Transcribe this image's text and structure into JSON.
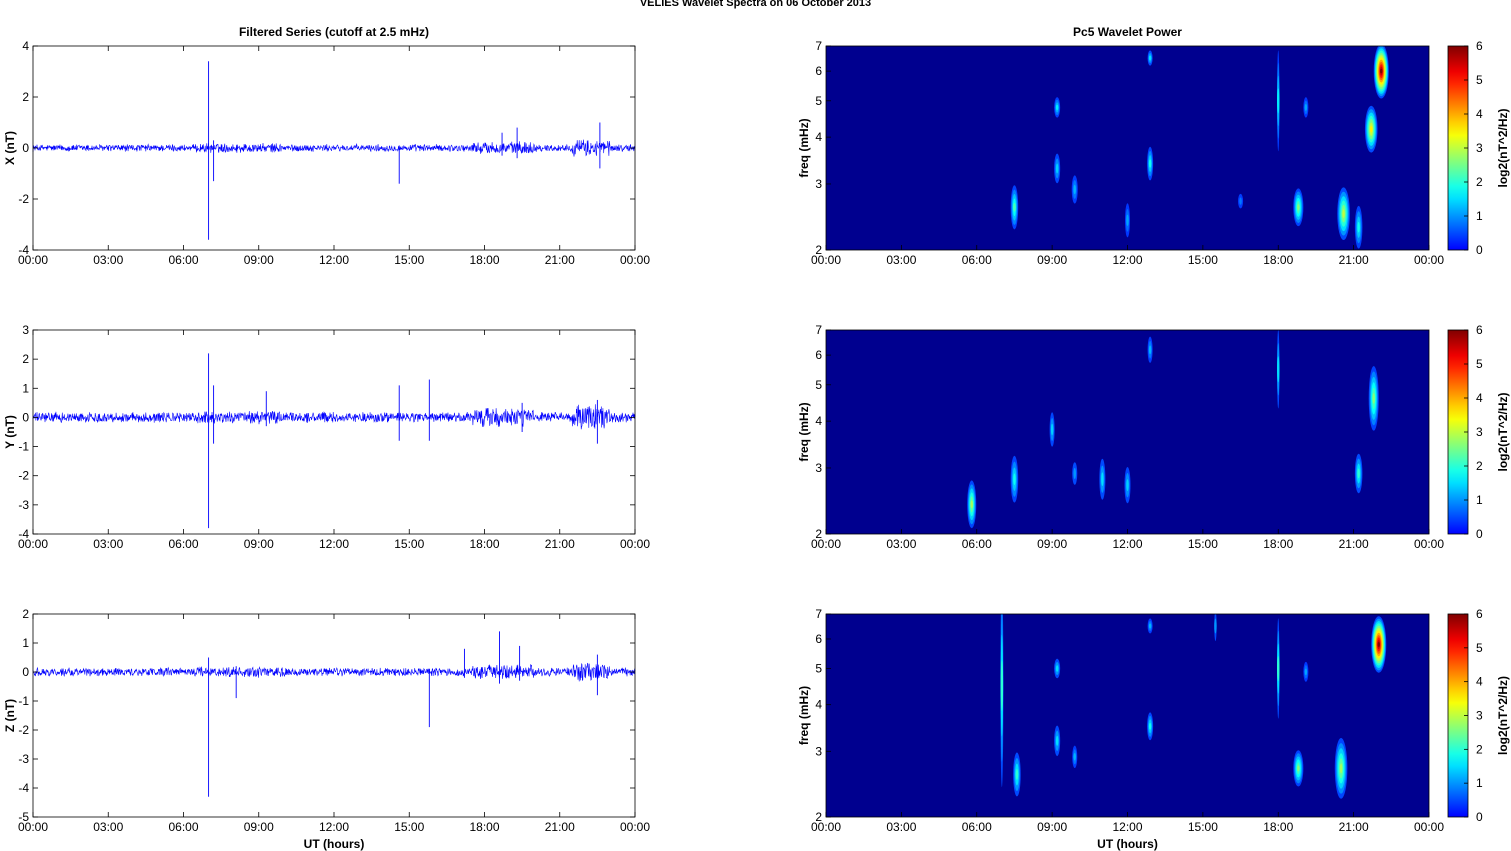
{
  "figure": {
    "title": "VELIES Wavelet Spectra on 06 October   2013",
    "left_title": "Filtered Series (cutoff at 2.5 mHz)",
    "right_title": "Pc5 Wavelet Power",
    "xlabel": "UT (hours)"
  },
  "colors": {
    "trace": "#0000ff",
    "background_power": "#00008f"
  },
  "chart_data": [
    {
      "type": "line",
      "name": "filtered-x",
      "ylabel": "X (nT)",
      "ylim": [
        -4,
        4
      ],
      "yticks": [
        "-4",
        "-2",
        "0",
        "2",
        "4"
      ],
      "xticks": [
        "00:00",
        "03:00",
        "06:00",
        "09:00",
        "12:00",
        "15:00",
        "18:00",
        "21:00",
        "00:00"
      ],
      "xlim_hours": [
        0,
        24
      ],
      "noise_amplitude": 0.12,
      "spikes": [
        {
          "t": 7.0,
          "max": 3.4,
          "min": -3.6
        },
        {
          "t": 7.2,
          "max": 0.3,
          "min": -1.3
        },
        {
          "t": 14.6,
          "max": 0.1,
          "min": -1.4
        },
        {
          "t": 18.7,
          "max": 0.6,
          "min": -0.3
        },
        {
          "t": 19.3,
          "max": 0.8,
          "min": -0.4
        },
        {
          "t": 22.6,
          "max": 1.0,
          "min": -0.8
        }
      ]
    },
    {
      "type": "line",
      "name": "filtered-y",
      "ylabel": "Y (nT)",
      "ylim": [
        -4,
        3
      ],
      "yticks": [
        "-4",
        "-3",
        "-2",
        "-1",
        "0",
        "1",
        "2",
        "3"
      ],
      "xticks": [
        "00:00",
        "03:00",
        "06:00",
        "09:00",
        "12:00",
        "15:00",
        "18:00",
        "21:00",
        "00:00"
      ],
      "xlim_hours": [
        0,
        24
      ],
      "noise_amplitude": 0.15,
      "spikes": [
        {
          "t": 7.0,
          "max": 2.2,
          "min": -3.8
        },
        {
          "t": 7.2,
          "max": 1.1,
          "min": -0.9
        },
        {
          "t": 9.3,
          "max": 0.9,
          "min": -0.3
        },
        {
          "t": 14.6,
          "max": 1.1,
          "min": -0.8
        },
        {
          "t": 15.8,
          "max": 1.3,
          "min": -0.8
        },
        {
          "t": 19.5,
          "max": 0.5,
          "min": -0.5
        },
        {
          "t": 22.5,
          "max": 0.6,
          "min": -0.9
        }
      ]
    },
    {
      "type": "line",
      "name": "filtered-z",
      "ylabel": "Z (nT)",
      "ylim": [
        -5,
        2
      ],
      "yticks": [
        "-5",
        "-4",
        "-3",
        "-2",
        "-1",
        "0",
        "1",
        "2"
      ],
      "xticks": [
        "00:00",
        "03:00",
        "06:00",
        "09:00",
        "12:00",
        "15:00",
        "18:00",
        "21:00",
        "00:00"
      ],
      "xlim_hours": [
        0,
        24
      ],
      "noise_amplitude": 0.12,
      "spikes": [
        {
          "t": 7.0,
          "max": 0.5,
          "min": -4.3
        },
        {
          "t": 8.1,
          "max": 0.2,
          "min": -0.9
        },
        {
          "t": 15.8,
          "max": 0.1,
          "min": -1.9
        },
        {
          "t": 17.2,
          "max": 0.8,
          "min": -0.2
        },
        {
          "t": 18.6,
          "max": 1.4,
          "min": -0.4
        },
        {
          "t": 19.4,
          "max": 0.9,
          "min": -0.3
        },
        {
          "t": 22.5,
          "max": 0.6,
          "min": -0.8
        }
      ]
    },
    {
      "type": "heatmap",
      "name": "power-x",
      "ylabel": "freq (mHz)",
      "yscale": "log",
      "ylim_mhz": [
        2,
        7
      ],
      "yticks": [
        "2",
        "3",
        "4",
        "5",
        "6",
        "7"
      ],
      "xticks": [
        "00:00",
        "03:00",
        "06:00",
        "09:00",
        "12:00",
        "15:00",
        "18:00",
        "21:00",
        "00:00"
      ],
      "colorbar_label": "log2(nT^2/Hz)",
      "colorbar_ticks": [
        "0",
        "1",
        "2",
        "3",
        "4",
        "5",
        "6"
      ],
      "clim": [
        0,
        6
      ],
      "blobs": [
        {
          "t": 7.5,
          "f": 2.6,
          "dt": 0.15,
          "df": 0.35,
          "p": 2.2
        },
        {
          "t": 9.2,
          "f": 4.8,
          "dt": 0.12,
          "df": 0.3,
          "p": 1.6
        },
        {
          "t": 9.2,
          "f": 3.3,
          "dt": 0.12,
          "df": 0.3,
          "p": 1.4
        },
        {
          "t": 9.9,
          "f": 2.9,
          "dt": 0.12,
          "df": 0.25,
          "p": 1.2
        },
        {
          "t": 12.0,
          "f": 2.4,
          "dt": 0.1,
          "df": 0.25,
          "p": 1.1
        },
        {
          "t": 12.9,
          "f": 3.4,
          "dt": 0.12,
          "df": 0.35,
          "p": 1.8
        },
        {
          "t": 12.9,
          "f": 6.5,
          "dt": 0.1,
          "df": 0.3,
          "p": 1.5
        },
        {
          "t": 16.5,
          "f": 2.7,
          "dt": 0.1,
          "df": 0.12,
          "p": 0.8
        },
        {
          "t": 18.0,
          "f": 5.0,
          "dt": 0.05,
          "df": 1.5,
          "p": 1.6
        },
        {
          "t": 18.8,
          "f": 2.6,
          "dt": 0.2,
          "df": 0.3,
          "p": 2.6
        },
        {
          "t": 19.1,
          "f": 4.8,
          "dt": 0.1,
          "df": 0.3,
          "p": 1.1
        },
        {
          "t": 20.6,
          "f": 2.5,
          "dt": 0.25,
          "df": 0.4,
          "p": 3.0
        },
        {
          "t": 21.2,
          "f": 2.3,
          "dt": 0.15,
          "df": 0.3,
          "p": 1.8
        },
        {
          "t": 21.7,
          "f": 4.2,
          "dt": 0.25,
          "df": 0.6,
          "p": 3.5
        },
        {
          "t": 22.1,
          "f": 6.0,
          "dt": 0.3,
          "df": 1.0,
          "p": 6.0
        }
      ]
    },
    {
      "type": "heatmap",
      "name": "power-y",
      "ylabel": "freq (mHz)",
      "yscale": "log",
      "ylim_mhz": [
        2,
        7
      ],
      "yticks": [
        "2",
        "3",
        "4",
        "5",
        "6",
        "7"
      ],
      "xticks": [
        "00:00",
        "03:00",
        "06:00",
        "09:00",
        "12:00",
        "15:00",
        "18:00",
        "21:00",
        "00:00"
      ],
      "colorbar_label": "log2(nT^2/Hz)",
      "colorbar_ticks": [
        "0",
        "1",
        "2",
        "3",
        "4",
        "5",
        "6"
      ],
      "clim": [
        0,
        6
      ],
      "blobs": [
        {
          "t": 5.8,
          "f": 2.4,
          "dt": 0.18,
          "df": 0.35,
          "p": 2.8
        },
        {
          "t": 7.5,
          "f": 2.8,
          "dt": 0.15,
          "df": 0.4,
          "p": 1.8
        },
        {
          "t": 9.0,
          "f": 3.8,
          "dt": 0.1,
          "df": 0.4,
          "p": 1.4
        },
        {
          "t": 9.9,
          "f": 2.9,
          "dt": 0.1,
          "df": 0.2,
          "p": 1.0
        },
        {
          "t": 11.0,
          "f": 2.8,
          "dt": 0.12,
          "df": 0.35,
          "p": 1.5
        },
        {
          "t": 12.0,
          "f": 2.7,
          "dt": 0.12,
          "df": 0.3,
          "p": 1.4
        },
        {
          "t": 12.9,
          "f": 6.2,
          "dt": 0.1,
          "df": 0.5,
          "p": 1.2
        },
        {
          "t": 18.0,
          "f": 5.5,
          "dt": 0.05,
          "df": 1.3,
          "p": 1.5
        },
        {
          "t": 21.2,
          "f": 2.9,
          "dt": 0.15,
          "df": 0.35,
          "p": 2.0
        },
        {
          "t": 21.8,
          "f": 4.6,
          "dt": 0.2,
          "df": 0.9,
          "p": 2.6
        }
      ]
    },
    {
      "type": "heatmap",
      "name": "power-z",
      "ylabel": "freq (mHz)",
      "yscale": "log",
      "ylim_mhz": [
        2,
        7
      ],
      "yticks": [
        "2",
        "3",
        "4",
        "5",
        "6",
        "7"
      ],
      "xticks": [
        "00:00",
        "03:00",
        "06:00",
        "09:00",
        "12:00",
        "15:00",
        "18:00",
        "21:00",
        "00:00"
      ],
      "colorbar_label": "log2(nT^2/Hz)",
      "colorbar_ticks": [
        "0",
        "1",
        "2",
        "3",
        "4",
        "5",
        "6"
      ],
      "clim": [
        0,
        6
      ],
      "blobs": [
        {
          "t": 7.0,
          "f": 4.5,
          "dt": 0.06,
          "df": 2.5,
          "p": 2.0
        },
        {
          "t": 7.6,
          "f": 2.6,
          "dt": 0.15,
          "df": 0.35,
          "p": 2.0
        },
        {
          "t": 9.2,
          "f": 5.0,
          "dt": 0.12,
          "df": 0.3,
          "p": 1.5
        },
        {
          "t": 9.2,
          "f": 3.2,
          "dt": 0.12,
          "df": 0.3,
          "p": 1.5
        },
        {
          "t": 9.9,
          "f": 2.9,
          "dt": 0.1,
          "df": 0.2,
          "p": 1.2
        },
        {
          "t": 12.9,
          "f": 3.5,
          "dt": 0.12,
          "df": 0.3,
          "p": 1.8
        },
        {
          "t": 12.9,
          "f": 6.5,
          "dt": 0.1,
          "df": 0.3,
          "p": 1.2
        },
        {
          "t": 15.5,
          "f": 6.5,
          "dt": 0.04,
          "df": 0.6,
          "p": 1.0
        },
        {
          "t": 18.0,
          "f": 5.0,
          "dt": 0.05,
          "df": 1.5,
          "p": 2.0
        },
        {
          "t": 18.8,
          "f": 2.7,
          "dt": 0.2,
          "df": 0.3,
          "p": 2.6
        },
        {
          "t": 19.1,
          "f": 4.9,
          "dt": 0.1,
          "df": 0.3,
          "p": 1.1
        },
        {
          "t": 20.5,
          "f": 2.7,
          "dt": 0.25,
          "df": 0.5,
          "p": 2.8
        },
        {
          "t": 22.0,
          "f": 5.8,
          "dt": 0.3,
          "df": 1.0,
          "p": 6.0
        }
      ]
    }
  ]
}
